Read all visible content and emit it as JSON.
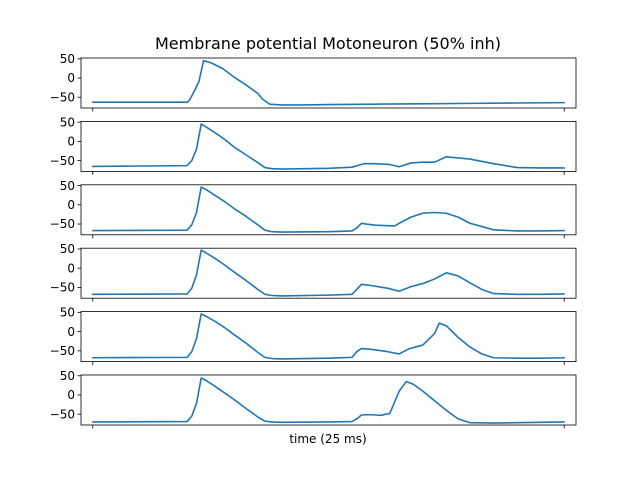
{
  "colors": {
    "line": "#1f77b4",
    "axes": "#000000",
    "background": "#ffffff"
  },
  "chart_data": {
    "type": "line",
    "title": "Membrane potential Motoneuron (50% inh)",
    "xlabel": "time (25 ms)",
    "ylabel": "",
    "grid": false,
    "legend": false,
    "xlim": [
      -0.5,
      20.5
    ],
    "ylim": [
      -78,
      52
    ],
    "yticks": [
      50,
      0,
      -50
    ],
    "ytick_labels": [
      "50",
      "0",
      "−50"
    ],
    "xticks": [
      0,
      20
    ],
    "x_ticklabels_shown": false,
    "panels": [
      {
        "series": [
          {
            "x": [
              0,
              4,
              4.1,
              4.3,
              4.5,
              4.7,
              5,
              5.5,
              6,
              6.5,
              7,
              7.2,
              7.5,
              8,
              9,
              10,
              12,
              14,
              16,
              18,
              20
            ],
            "y": [
              -63,
              -63,
              -58,
              -35,
              -10,
              45,
              40,
              25,
              2,
              -18,
              -40,
              -55,
              -68,
              -70,
              -70,
              -69,
              -68,
              -67,
              -66,
              -65,
              -64
            ]
          }
        ]
      },
      {
        "series": [
          {
            "x": [
              0,
              4,
              4.2,
              4.4,
              4.6,
              4.8,
              5.2,
              5.6,
              6,
              6.5,
              7,
              7.3,
              7.6,
              8,
              10,
              11,
              11.5,
              12,
              12.6,
              13,
              13.5,
              14,
              14.5,
              15,
              16,
              17,
              18,
              19,
              20
            ],
            "y": [
              -65,
              -63,
              -50,
              -20,
              45,
              38,
              22,
              5,
              -15,
              -35,
              -55,
              -68,
              -71,
              -72,
              -70,
              -67,
              -58,
              -58,
              -60,
              -66,
              -56,
              -54,
              -54,
              -40,
              -46,
              -58,
              -68,
              -69,
              -69
            ]
          }
        ]
      },
      {
        "series": [
          {
            "x": [
              0,
              4,
              4.2,
              4.4,
              4.6,
              4.8,
              5.2,
              5.6,
              6,
              6.5,
              7,
              7.3,
              7.6,
              8,
              10,
              11,
              11.2,
              11.4,
              11.6,
              12,
              12.8,
              13,
              13.5,
              14,
              14.5,
              15,
              15.5,
              16,
              17,
              18,
              19,
              20
            ],
            "y": [
              -67,
              -66,
              -52,
              -20,
              46,
              40,
              24,
              8,
              -10,
              -30,
              -52,
              -66,
              -70,
              -71,
              -70,
              -68,
              -60,
              -48,
              -50,
              -53,
              -55,
              -48,
              -32,
              -22,
              -20,
              -22,
              -32,
              -48,
              -65,
              -68,
              -68,
              -67
            ]
          }
        ]
      },
      {
        "series": [
          {
            "x": [
              0,
              4,
              4.2,
              4.4,
              4.6,
              4.8,
              5.2,
              5.6,
              6,
              6.5,
              7,
              7.3,
              7.6,
              8,
              10,
              11,
              11.2,
              11.4,
              11.8,
              12.5,
              13,
              13.5,
              14,
              14.5,
              15,
              15.5,
              16,
              16.5,
              17,
              18,
              19,
              20
            ],
            "y": [
              -68,
              -67,
              -52,
              -18,
              47,
              40,
              25,
              8,
              -10,
              -32,
              -55,
              -68,
              -71,
              -72,
              -70,
              -68,
              -55,
              -42,
              -45,
              -52,
              -60,
              -48,
              -40,
              -28,
              -12,
              -20,
              -38,
              -55,
              -66,
              -68,
              -68,
              -67
            ]
          }
        ]
      },
      {
        "series": [
          {
            "x": [
              0,
              4,
              4.2,
              4.4,
              4.6,
              4.8,
              5.2,
              5.6,
              6,
              6.5,
              7,
              7.3,
              7.6,
              8,
              10,
              11,
              11.2,
              11.4,
              11.8,
              12.5,
              13,
              13.4,
              14,
              14.5,
              14.7,
              15,
              15.5,
              16,
              16.5,
              17,
              18,
              19,
              20
            ],
            "y": [
              -68,
              -67,
              -52,
              -18,
              46,
              40,
              26,
              10,
              -8,
              -30,
              -54,
              -67,
              -70,
              -71,
              -69,
              -67,
              -52,
              -44,
              -46,
              -52,
              -58,
              -45,
              -35,
              -5,
              22,
              15,
              -15,
              -40,
              -58,
              -68,
              -69,
              -69,
              -68
            ]
          }
        ]
      },
      {
        "series": [
          {
            "x": [
              0,
              4,
              4.2,
              4.4,
              4.6,
              4.8,
              5.2,
              5.6,
              6,
              6.5,
              7,
              7.3,
              7.6,
              8,
              10,
              11,
              11.2,
              11.4,
              11.8,
              12.2,
              12.6,
              13,
              13.3,
              13.6,
              14,
              14.5,
              15,
              15.5,
              16,
              17,
              18,
              19,
              20
            ],
            "y": [
              -70,
              -69,
              -55,
              -22,
              44,
              38,
              22,
              5,
              -12,
              -35,
              -57,
              -68,
              -70,
              -71,
              -70,
              -69,
              -62,
              -52,
              -51,
              -53,
              -48,
              10,
              35,
              28,
              10,
              -15,
              -40,
              -62,
              -72,
              -73,
              -72,
              -71,
              -70
            ]
          }
        ]
      }
    ]
  }
}
